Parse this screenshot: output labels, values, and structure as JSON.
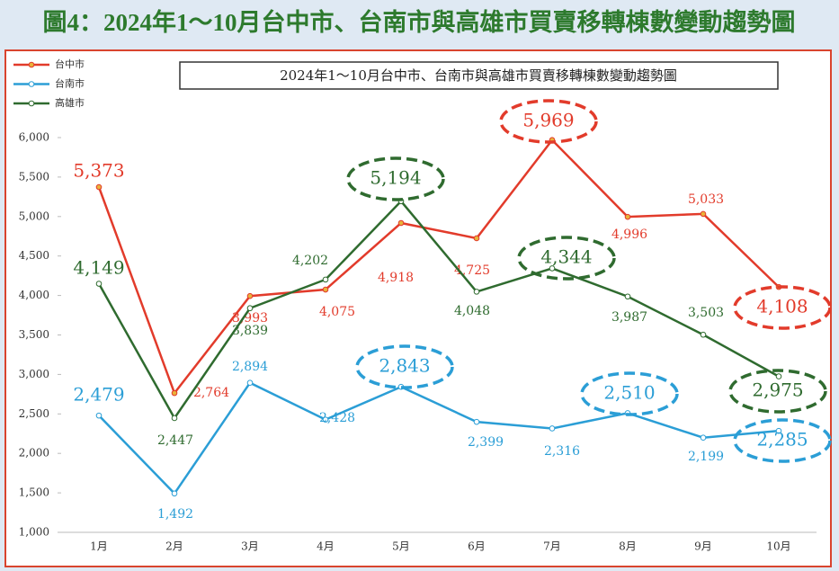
{
  "heading": "圖4：2024年1～10月台中市、台南市與高雄市買賣移轉棟數變動趨勢圖",
  "chart_data": {
    "type": "line",
    "title": "2024年1～10月台中市、台南市與高雄市買賣移轉棟數變動趨勢圖",
    "categories": [
      "1月",
      "2月",
      "3月",
      "4月",
      "5月",
      "6月",
      "7月",
      "8月",
      "9月",
      "10月"
    ],
    "ylim": [
      1000,
      6000
    ],
    "yticks": [
      {
        "value": 1000,
        "label": "1,000"
      },
      {
        "value": 1500,
        "label": "1,500"
      },
      {
        "value": 2000,
        "label": "2,000"
      },
      {
        "value": 2500,
        "label": "2,500"
      },
      {
        "value": 3000,
        "label": "3,000"
      },
      {
        "value": 3500,
        "label": "3,500"
      },
      {
        "value": 4000,
        "label": "4,000"
      },
      {
        "value": 4500,
        "label": "4,500"
      },
      {
        "value": 5000,
        "label": "5,000"
      },
      {
        "value": 5500,
        "label": "5,500"
      },
      {
        "value": 6000,
        "label": "6,000"
      }
    ],
    "legend": "top-left",
    "series": [
      {
        "name": "台中市",
        "color": "#e23b2b",
        "values": [
          5373,
          2764,
          3993,
          4075,
          4918,
          4725,
          5969,
          4996,
          5033,
          4108
        ],
        "value_labels": [
          "5,373",
          "2,764",
          "3,993",
          "4,075",
          "4,918",
          "4,725",
          "5,969",
          "4,996",
          "5,033",
          "4,108"
        ],
        "highlight": [
          6,
          9
        ]
      },
      {
        "name": "台南市",
        "color": "#2b9ed6",
        "values": [
          2479,
          1492,
          2894,
          2428,
          2843,
          2399,
          2316,
          2510,
          2199,
          2285
        ],
        "value_labels": [
          "2,479",
          "1,492",
          "2,894",
          "2,428",
          "2,843",
          "2,399",
          "2,316",
          "2,510",
          "2,199",
          "2,285"
        ],
        "highlight": [
          4,
          7,
          9
        ]
      },
      {
        "name": "高雄市",
        "color": "#2f6b2f",
        "values": [
          4149,
          2447,
          3839,
          4202,
          5194,
          4048,
          4344,
          3987,
          3503,
          2975
        ],
        "value_labels": [
          "4,149",
          "2,447",
          "3,839",
          "4,202",
          "5,194",
          "4,048",
          "4,344",
          "3,987",
          "3,503",
          "2,975"
        ],
        "highlight": [
          4,
          6,
          9
        ]
      }
    ]
  }
}
